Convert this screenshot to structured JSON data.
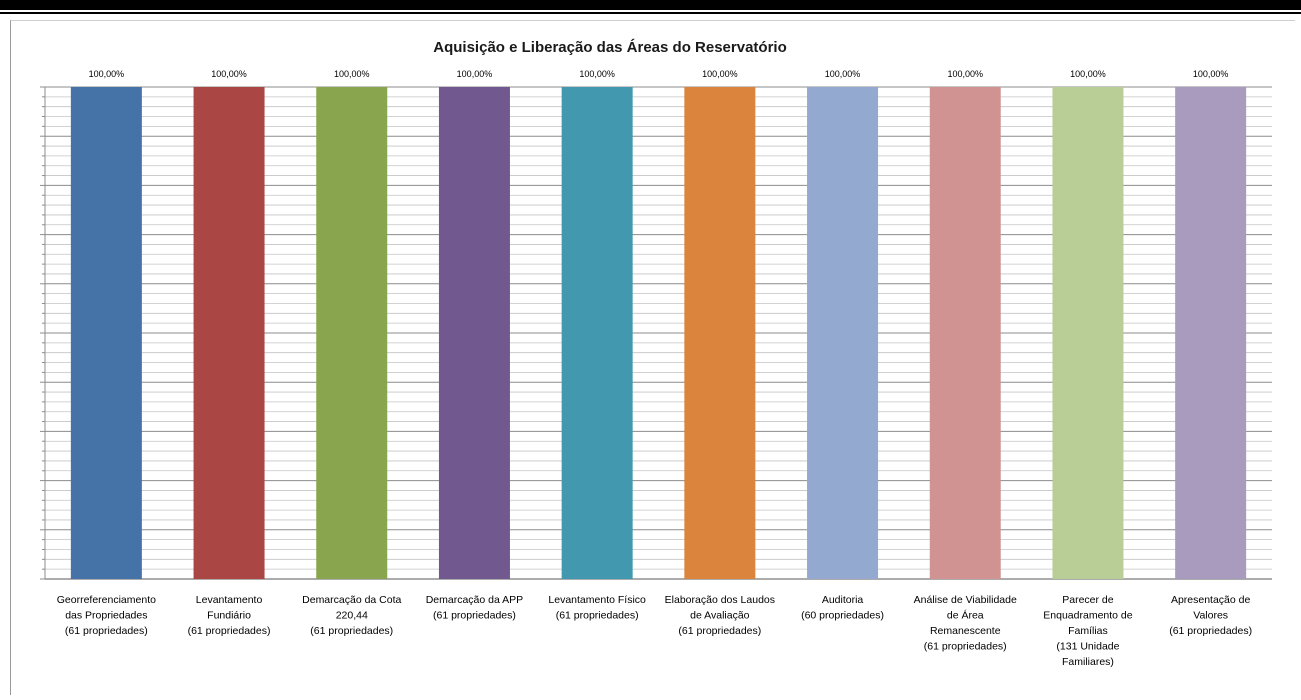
{
  "chart_data": {
    "type": "bar",
    "title": "Aquisição  e Liberação das Áreas do Reservatório",
    "xlabel": "",
    "ylabel": "",
    "ylim": [
      0,
      100
    ],
    "grid": true,
    "legend": "none",
    "categories": [
      [
        "Georreferenciamento",
        "das Propriedades",
        "(61 propriedades)"
      ],
      [
        "Levantamento",
        "Fundiário",
        "(61 propriedades)"
      ],
      [
        "Demarcação da Cota",
        "220,44",
        "(61 propriedades)"
      ],
      [
        "Demarcação da APP",
        "(61 propriedades)"
      ],
      [
        "Levantamento Físico",
        "(61 propriedades)"
      ],
      [
        "Elaboração dos Laudos",
        "de Avaliação",
        "(61 propriedades)"
      ],
      [
        "Auditoria",
        "(60 propriedades)"
      ],
      [
        "Análise de Viabilidade",
        "de Área",
        "Remanescente",
        "(61 propriedades)"
      ],
      [
        "Parecer de",
        "Enquadramento de",
        "Famílias",
        "(131 Unidade",
        "Familiares)"
      ],
      [
        "Apresentação de",
        "Valores",
        "(61 propriedades)"
      ]
    ],
    "values": [
      100,
      100,
      100,
      100,
      100,
      100,
      100,
      100,
      100,
      100
    ],
    "data_labels": [
      "100,00%",
      "100,00%",
      "100,00%",
      "100,00%",
      "100,00%",
      "100,00%",
      "100,00%",
      "100,00%",
      "100,00%",
      "100,00%"
    ],
    "colors": [
      "#4572a7",
      "#aa4643",
      "#89a54e",
      "#71588f",
      "#4198af",
      "#db843d",
      "#93a9cf",
      "#d19392",
      "#b9cd96",
      "#a99bbd"
    ]
  }
}
